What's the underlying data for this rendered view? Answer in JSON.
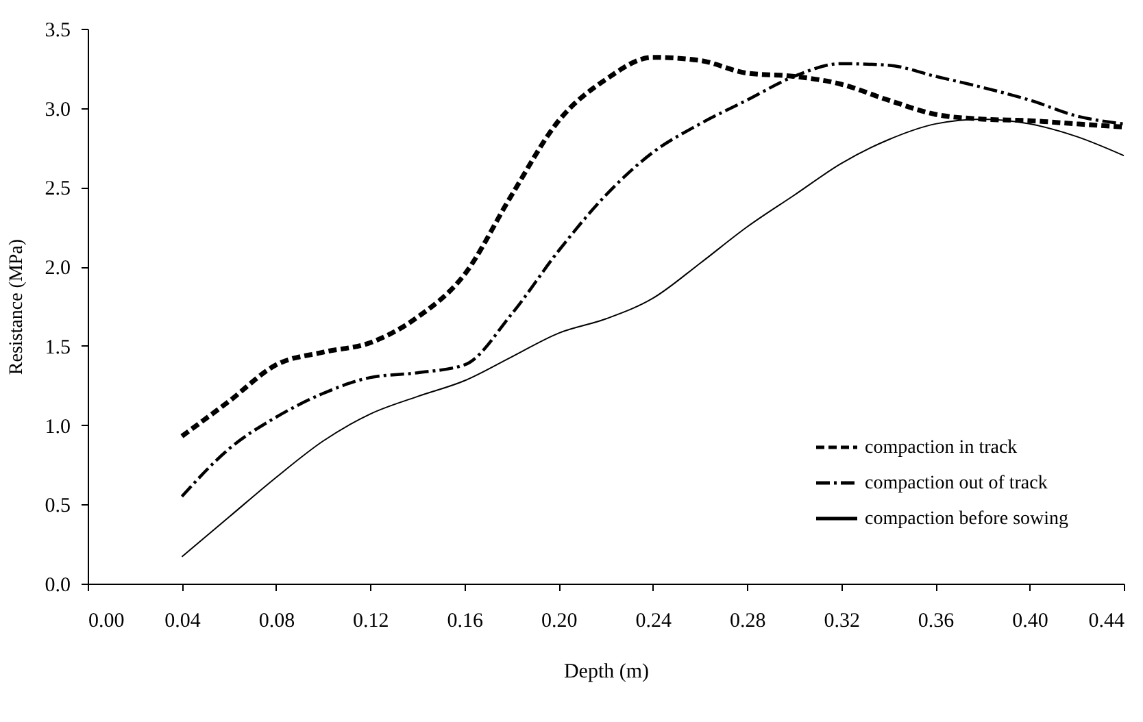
{
  "chart_data": {
    "type": "line",
    "xlabel": "Depth (m)",
    "ylabel": "Resistance (MPa)",
    "x": [
      0.04,
      0.06,
      0.08,
      0.1,
      0.12,
      0.14,
      0.16,
      0.18,
      0.2,
      0.22,
      0.24,
      0.26,
      0.28,
      0.3,
      0.32,
      0.34,
      0.36,
      0.38,
      0.4,
      0.42,
      0.44
    ],
    "series": [
      {
        "name": "compaction in track",
        "color": "#000000",
        "line_style": "dashed",
        "values": [
          0.93,
          1.15,
          1.38,
          1.46,
          1.52,
          1.68,
          1.95,
          2.45,
          2.92,
          3.18,
          3.32,
          3.3,
          3.22,
          3.2,
          3.15,
          3.05,
          2.96,
          2.93,
          2.92,
          2.9,
          2.88
        ]
      },
      {
        "name": "compaction out of track",
        "color": "#000000",
        "line_style": "dashed",
        "values": [
          0.55,
          0.85,
          1.05,
          1.2,
          1.3,
          1.33,
          1.38,
          1.7,
          2.1,
          2.45,
          2.72,
          2.9,
          3.05,
          3.2,
          3.28,
          3.27,
          3.2,
          3.13,
          3.05,
          2.95,
          2.9
        ]
      },
      {
        "name": "compaction before sowing",
        "color": "#000000",
        "line_style": "solid",
        "values": [
          0.17,
          0.42,
          0.67,
          0.9,
          1.07,
          1.18,
          1.28,
          1.43,
          1.58,
          1.67,
          1.8,
          2.02,
          2.25,
          2.45,
          2.65,
          2.8,
          2.9,
          2.93,
          2.9,
          2.82,
          2.7
        ]
      }
    ],
    "xlim": [
      0,
      0.44
    ],
    "xticks": [
      {
        "value": 0,
        "label": "0.00"
      },
      0.04,
      0.08,
      0.12,
      0.16,
      {
        "value": 0.2,
        "label": "0.20"
      },
      0.24,
      0.28,
      0.32,
      0.36,
      {
        "value": 0.4,
        "label": "0.40"
      },
      0.44
    ],
    "ylim": [
      0,
      3.5
    ],
    "yticks": [
      {
        "value": 0,
        "label": "0.0"
      },
      0.5,
      {
        "value": 1,
        "label": "1.0"
      },
      1.5,
      {
        "value": 2,
        "label": "2.0"
      },
      2.5,
      {
        "value": 3,
        "label": "3.0"
      },
      3.5
    ],
    "grid": false,
    "legend": "bottom right",
    "marker": "none"
  }
}
